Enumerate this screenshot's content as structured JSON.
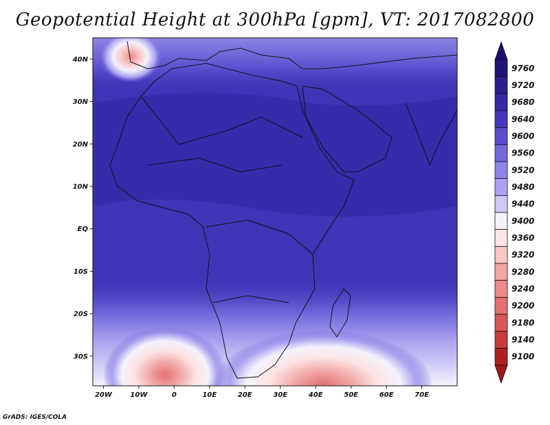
{
  "title": "Geopotential Height at 300hPa [gpm], VT: 2017082800",
  "credit": "GrADS: IGES/COLA",
  "map": {
    "lon_range": [
      -23,
      80
    ],
    "lat_range": [
      -37,
      45
    ],
    "lon_ticks": [
      {
        "value": -20,
        "label": "20W"
      },
      {
        "value": -10,
        "label": "10W"
      },
      {
        "value": 0,
        "label": "0"
      },
      {
        "value": 10,
        "label": "10E"
      },
      {
        "value": 20,
        "label": "20E"
      },
      {
        "value": 30,
        "label": "30E"
      },
      {
        "value": 40,
        "label": "40E"
      },
      {
        "value": 50,
        "label": "50E"
      },
      {
        "value": 60,
        "label": "60E"
      },
      {
        "value": 70,
        "label": "70E"
      }
    ],
    "lat_ticks": [
      {
        "value": 40,
        "label": "40N"
      },
      {
        "value": 30,
        "label": "30N"
      },
      {
        "value": 20,
        "label": "20N"
      },
      {
        "value": 10,
        "label": "10N"
      },
      {
        "value": 0,
        "label": "EQ"
      },
      {
        "value": -10,
        "label": "10S"
      },
      {
        "value": -20,
        "label": "20S"
      },
      {
        "value": -30,
        "label": "30S"
      }
    ]
  },
  "colorbar": {
    "levels": [
      {
        "value": "9760",
        "color": "#1e1478"
      },
      {
        "value": "9720",
        "color": "#2a1f8f"
      },
      {
        "value": "9680",
        "color": "#3529a8"
      },
      {
        "value": "9640",
        "color": "#4437bd"
      },
      {
        "value": "9600",
        "color": "#5a4fcf"
      },
      {
        "value": "9560",
        "color": "#7368dc"
      },
      {
        "value": "9520",
        "color": "#8d84e6"
      },
      {
        "value": "9480",
        "color": "#aaa3ef"
      },
      {
        "value": "9440",
        "color": "#cdc9f6"
      },
      {
        "value": "9400",
        "color": "#f4f2fc"
      },
      {
        "value": "9360",
        "color": "#fce4e4"
      },
      {
        "value": "9320",
        "color": "#f8c6c6"
      },
      {
        "value": "9280",
        "color": "#f2a6a6"
      },
      {
        "value": "9240",
        "color": "#eb8a8a"
      },
      {
        "value": "9200",
        "color": "#e27070"
      },
      {
        "value": "9180",
        "color": "#d85858"
      },
      {
        "value": "9140",
        "color": "#c83c3c"
      },
      {
        "value": "9100",
        "color": "#b02020"
      }
    ],
    "top_arrow_color": "#180f6a",
    "bottom_arrow_color": "#a01818"
  }
}
